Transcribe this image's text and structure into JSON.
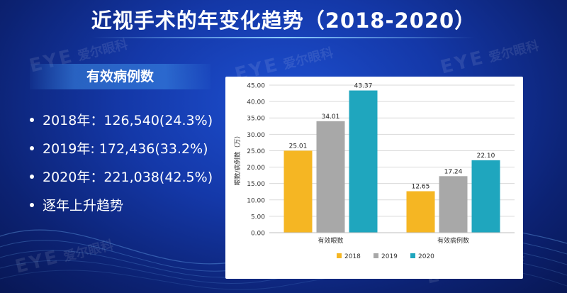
{
  "slide": {
    "title": "近视手术的年变化趋势（2018-2020）",
    "subtitle": "有效病例数",
    "bullets": [
      "2018年：126,540(24.3%)",
      "2019年:  172,436(33.2%)",
      "2020年：221,038(42.5%)",
      "逐年上升趋势"
    ],
    "watermark": {
      "logo": "EYE",
      "name": "爱尔眼科"
    }
  },
  "chart_data": {
    "type": "bar",
    "categories": [
      "有效眼数",
      "有效病例数"
    ],
    "series": [
      {
        "name": "2018",
        "color": "#F5B623",
        "values": [
          25.01,
          12.65
        ]
      },
      {
        "name": "2019",
        "color": "#A8A8A8",
        "values": [
          34.01,
          17.24
        ]
      },
      {
        "name": "2020",
        "color": "#1FA6BE",
        "values": [
          43.37,
          22.1
        ]
      }
    ],
    "value_labels": [
      [
        "25.01",
        "12.65"
      ],
      [
        "34.01",
        "17.24"
      ],
      [
        "43.37",
        "22.10"
      ]
    ],
    "ylabel": "眼数/病例数（万）",
    "ylim": [
      0,
      45
    ],
    "yticks": [
      "0.00",
      "5.00",
      "10.00",
      "15.00",
      "20.00",
      "25.00",
      "30.00",
      "35.00",
      "40.00",
      "45.00"
    ],
    "grid": true,
    "legend": "bottom"
  }
}
